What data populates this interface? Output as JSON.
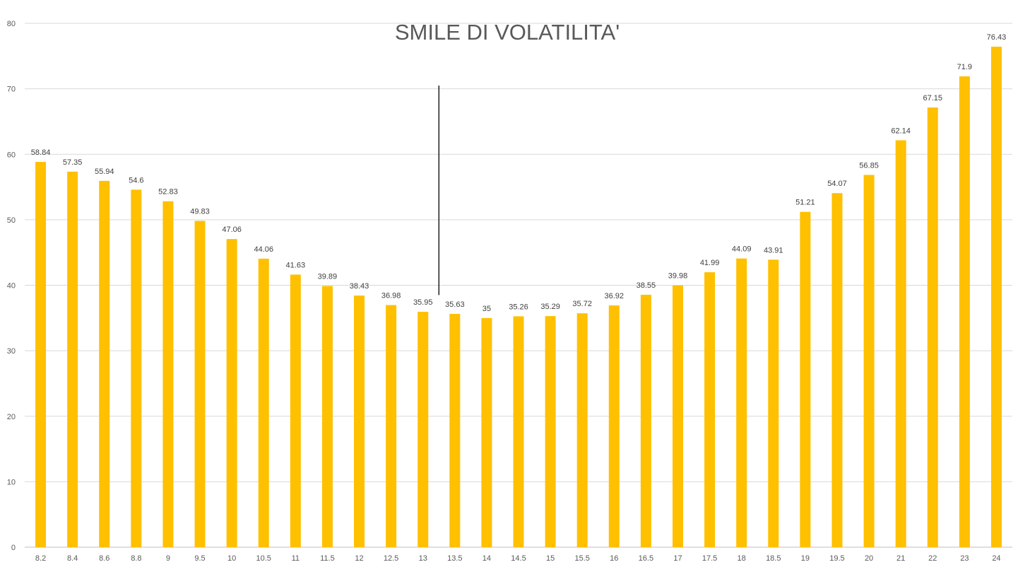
{
  "chart_data": {
    "type": "bar",
    "title": "SMILE DI VOLATILITA'",
    "xlabel": "",
    "ylabel": "",
    "ylim": [
      0,
      80
    ],
    "yticks": [
      0,
      10,
      20,
      30,
      40,
      50,
      60,
      70,
      80
    ],
    "grid": true,
    "legend": "none",
    "bar_color": "#FFC000",
    "categories": [
      "8.2",
      "8.4",
      "8.6",
      "8.8",
      "9",
      "9.5",
      "10",
      "10.5",
      "11",
      "11.5",
      "12",
      "12.5",
      "13",
      "13.5",
      "14",
      "14.5",
      "15",
      "15.5",
      "16",
      "16.5",
      "17",
      "17.5",
      "18",
      "18.5",
      "19",
      "19.5",
      "20",
      "21",
      "22",
      "23",
      "24"
    ],
    "values": [
      58.84,
      57.35,
      55.94,
      54.6,
      52.83,
      49.83,
      47.06,
      44.06,
      41.63,
      39.89,
      38.43,
      36.98,
      35.95,
      35.63,
      35,
      35.26,
      35.29,
      35.72,
      36.92,
      38.55,
      39.98,
      41.99,
      44.09,
      43.91,
      51.21,
      54.07,
      56.85,
      62.14,
      67.15,
      71.9,
      76.43
    ],
    "data_labels": [
      "58.84",
      "57.35",
      "55.94",
      "54.6",
      "52.83",
      "49.83",
      "47.06",
      "44.06",
      "41.63",
      "39.89",
      "38.43",
      "36.98",
      "35.95",
      "35.63",
      "35",
      "35.26",
      "35.29",
      "35.72",
      "36.92",
      "38.55",
      "39.98",
      "41.99",
      "44.09",
      "43.91",
      "51.21",
      "54.07",
      "56.85",
      "62.14",
      "67.15",
      "71.9",
      "76.43"
    ],
    "annotation": {
      "type": "vertical-line",
      "between_categories": [
        "13",
        "13.5"
      ],
      "y_range": [
        38.5,
        70.5
      ],
      "color": "#000000"
    }
  }
}
